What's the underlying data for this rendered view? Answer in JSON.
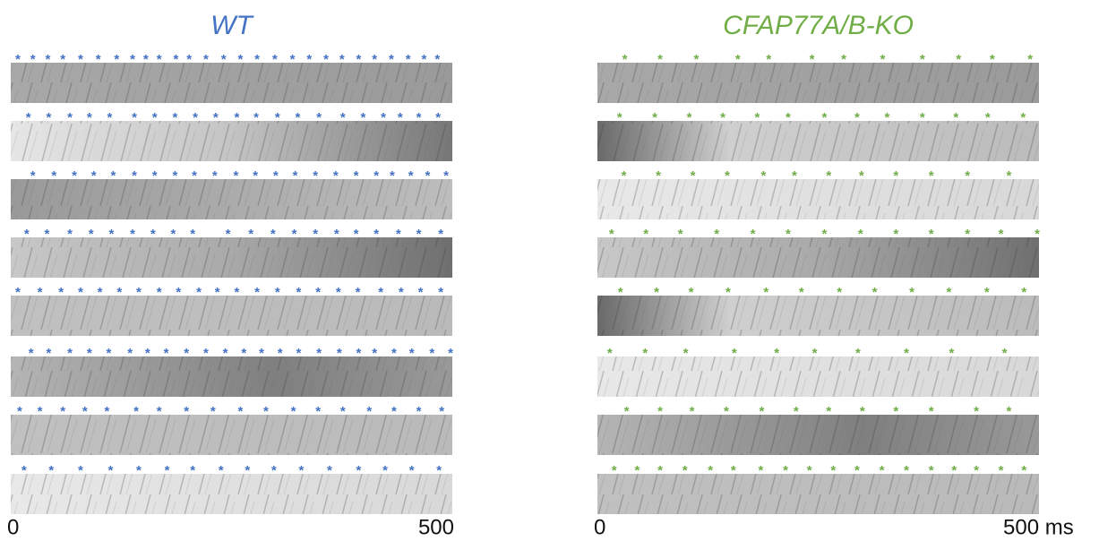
{
  "panels": [
    {
      "title": "WT",
      "color": "#4472c4",
      "marker": "*",
      "xlim": [
        0,
        500
      ],
      "xticks": [
        0,
        500
      ],
      "strips": [
        {
          "beats": [
            8,
            25,
            42,
            59,
            79,
            99,
            120,
            138,
            153,
            168,
            187,
            202,
            221,
            241,
            260,
            279,
            299,
            319,
            338,
            357,
            375,
            394,
            412,
            431,
            450,
            468,
            483
          ]
        },
        {
          "beats": [
            20,
            43,
            67,
            89,
            112,
            140,
            163,
            186,
            209,
            232,
            256,
            278,
            302,
            325,
            349,
            376,
            399,
            422,
            441,
            462,
            484
          ]
        },
        {
          "beats": [
            25,
            49,
            72,
            94,
            116,
            140,
            163,
            186,
            208,
            231,
            255,
            277,
            300,
            322,
            345,
            368,
            391,
            414,
            432,
            453,
            472,
            493
          ]
        },
        {
          "beats": [
            18,
            41,
            67,
            91,
            114,
            138,
            161,
            184,
            206,
            246,
            272,
            297,
            321,
            345,
            369,
            391,
            414,
            439,
            462,
            487
          ]
        },
        {
          "beats": [
            8,
            33,
            57,
            79,
            101,
            123,
            145,
            168,
            190,
            213,
            234,
            256,
            279,
            302,
            326,
            348,
            371,
            393,
            419,
            442,
            464,
            487
          ]
        },
        {
          "beats": [
            23,
            43,
            67,
            89,
            111,
            135,
            155,
            176,
            199,
            221,
            243,
            264,
            284,
            305,
            326,
            349,
            372,
            394,
            412,
            434,
            454,
            477,
            498
          ]
        },
        {
          "beats": [
            10,
            33,
            59,
            84,
            109,
            142,
            168,
            199,
            229,
            260,
            289,
            320,
            348,
            376,
            406,
            434,
            462,
            488
          ]
        },
        {
          "beats": [
            15,
            46,
            79,
            113,
            145,
            177,
            206,
            238,
            268,
            298,
            329,
            361,
            394,
            424,
            454,
            485
          ]
        }
      ]
    },
    {
      "title": "CFAP77A/B-KO",
      "color": "#70ad47",
      "marker": "*",
      "xlim": [
        0,
        500
      ],
      "xticks": [
        0,
        {
          "value": 500,
          "label": "500 ms"
        }
      ],
      "strips": [
        {
          "beats": [
            31,
            71,
            112,
            159,
            194,
            243,
            279,
            323,
            368,
            409,
            447,
            490
          ]
        },
        {
          "beats": [
            25,
            65,
            104,
            142,
            181,
            216,
            257,
            294,
            328,
            368,
            406,
            442,
            482
          ]
        },
        {
          "beats": [
            30,
            69,
            108,
            147,
            188,
            223,
            262,
            299,
            338,
            378,
            419,
            466
          ]
        },
        {
          "beats": [
            16,
            55,
            94,
            135,
            176,
            216,
            257,
            298,
            338,
            378,
            419,
            457,
            498
          ]
        },
        {
          "beats": [
            26,
            67,
            106,
            148,
            191,
            231,
            274,
            314,
            356,
            398,
            441,
            483
          ]
        },
        {
          "beats": [
            14,
            54,
            100,
            155,
            203,
            246,
            295,
            350,
            401,
            461
          ]
        },
        {
          "beats": [
            33,
            71,
            107,
            146,
            186,
            225,
            262,
            300,
            338,
            378,
            429,
            466
          ]
        },
        {
          "beats": [
            19,
            45,
            71,
            99,
            128,
            154,
            185,
            213,
            240,
            267,
            294,
            322,
            350,
            378,
            404,
            429,
            457,
            483
          ]
        }
      ]
    }
  ]
}
